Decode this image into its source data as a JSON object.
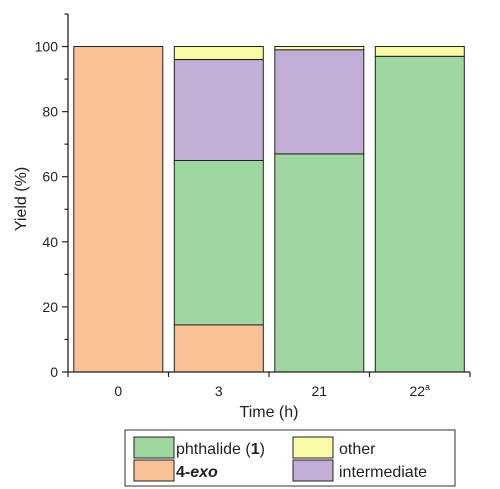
{
  "chart_data": {
    "type": "bar",
    "stacked": true,
    "categories": [
      "0",
      "3",
      "21",
      "22"
    ],
    "category_superscripts": [
      "",
      "",
      "",
      "a"
    ],
    "xlabel": "Time (h)",
    "ylabel": "Yield (%)",
    "ylim": [
      0,
      110
    ],
    "yticks": [
      0,
      20,
      40,
      60,
      80,
      100
    ],
    "grid": false,
    "legend_position": "bottom",
    "series": [
      {
        "name": "4-exo",
        "color": "#f8c196",
        "values": [
          100,
          14.5,
          0,
          0
        ]
      },
      {
        "name": "phthalide (1)",
        "color": "#9fd7a0",
        "values": [
          0,
          50.5,
          67,
          97
        ]
      },
      {
        "name": "intermediate",
        "color": "#c3afd6",
        "values": [
          0,
          31,
          32,
          0
        ]
      },
      {
        "name": "other",
        "color": "#fafaa6",
        "values": [
          0,
          4,
          1,
          3
        ]
      }
    ],
    "legend": {
      "items": [
        {
          "series": "phthalide (1)",
          "text_before": "phthalide (",
          "text_bold": "1",
          "text_after": ")"
        },
        {
          "series": "other",
          "text_before": "other",
          "text_bold": "",
          "text_after": ""
        },
        {
          "series": "4-exo",
          "text_before": "",
          "text_bold": "4-",
          "text_bold_italic": "exo",
          "text_after": ""
        },
        {
          "series": "intermediate",
          "text_before": "intermediate",
          "text_bold": "",
          "text_after": ""
        }
      ]
    }
  }
}
